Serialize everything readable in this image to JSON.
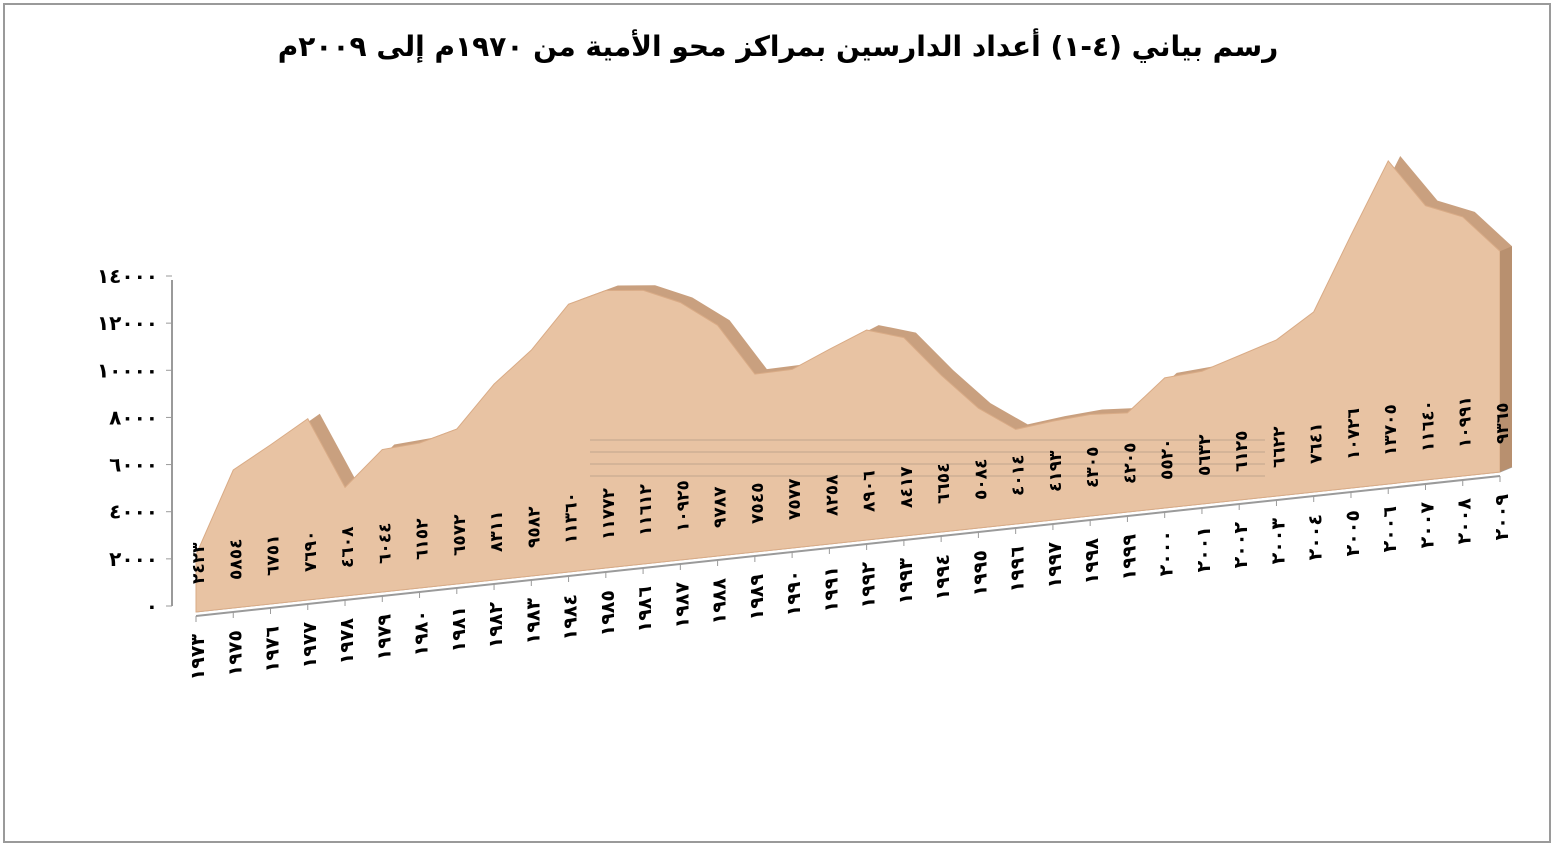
{
  "chart_data": {
    "type": "area",
    "title": "رسم بياني (٤-١) أعداد الدارسين بمراكز محو الأمية من ١٩٧٠م إلى ٢٠٠٩م",
    "ylim": [
      0,
      14000
    ],
    "yticks": [
      {
        "value": 0,
        "label": "٠"
      },
      {
        "value": 2000,
        "label": "٢٠٠٠"
      },
      {
        "value": 4000,
        "label": "٤٠٠٠"
      },
      {
        "value": 6000,
        "label": "٦٠٠٠"
      },
      {
        "value": 8000,
        "label": "٨٠٠٠"
      },
      {
        "value": 10000,
        "label": "١٠٠٠٠"
      },
      {
        "value": 12000,
        "label": "١٢٠٠٠"
      },
      {
        "value": 14000,
        "label": "١٤٠٠٠"
      }
    ],
    "categories": [
      "١٩٧٣",
      "١٩٧٥",
      "١٩٧٦",
      "١٩٧٧",
      "١٩٧٨",
      "١٩٧٩",
      "١٩٨٠",
      "١٩٨١",
      "١٩٨٢",
      "١٩٨٣",
      "١٩٨٤",
      "١٩٨٥",
      "١٩٨٦",
      "١٩٨٧",
      "١٩٨٨",
      "١٩٨٩",
      "١٩٩٠",
      "١٩٩١",
      "١٩٩٢",
      "١٩٩٣",
      "١٩٩٤",
      "١٩٩٥",
      "١٩٩٦",
      "١٩٩٧",
      "١٩٩٨",
      "١٩٩٩",
      "٢٠٠٠",
      "٢٠٠١",
      "٢٠٠٢",
      "٢٠٠٣",
      "٢٠٠٤",
      "٢٠٠٥",
      "٢٠٠٦",
      "٢٠٠٧",
      "٢٠٠٨",
      "٢٠٠٩"
    ],
    "values": [
      2423,
      5854,
      6751,
      7690,
      4608,
      6044,
      6152,
      6572,
      8311,
      9582,
      11360,
      11772,
      11612,
      10925,
      9787,
      7545,
      7577,
      8258,
      8906,
      8417,
      6654,
      5084,
      4014,
      4193,
      4305,
      4205,
      5520,
      5632,
      6125,
      6622,
      7641,
      10726,
      13705,
      11640,
      10991,
      9365
    ],
    "value_labels": [
      "٢٤٢٣",
      "٥٨٥٤",
      "٦٧٥١",
      "٧٦٩٠",
      "٤٦٠٨",
      "٦٠٤٤",
      "٦١٥٢",
      "٦٥٧٢",
      "٨٣١١",
      "٩٥٨٢",
      "١١٣٦٠",
      "١١٧٧٢",
      "١١٦١٢",
      "١٠٩٢٥",
      "٩٧٨٧",
      "٧٥٤٥",
      "٧٥٧٧",
      "٨٢٥٨",
      "٨٩٠٦",
      "٨٤١٧",
      "٦٦٥٤",
      "٥٠٨٤",
      "٤٠١٤",
      "٤١٩٣",
      "٤٣٠٥",
      "٤٢٠٥",
      "٥٥٢٠",
      "٥٦٣٢",
      "٦١٢٥",
      "٦٦٢٢",
      "٧٦٤١",
      "١٠٧٢٦",
      "١٣٧٠٥",
      "١١٦٤٠",
      "١٠٩٩١",
      "٩٣٦٥"
    ],
    "fill_color": "#e8c3a3",
    "side_color": "#c9a07f",
    "floor_color": "#d2d2d2",
    "legend": "none"
  }
}
